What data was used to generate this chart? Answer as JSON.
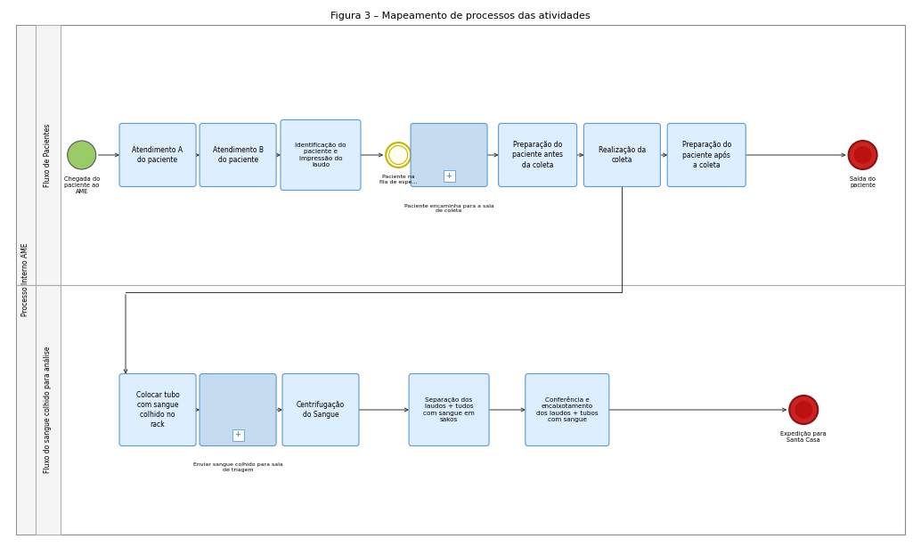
{
  "title": "Figura 3 – Mapeamento de processos das atividades",
  "title_fontsize": 8,
  "outer_border_color": "#888888",
  "lane_divider_color": "#aaaaaa",
  "box_fill_light": "#ddeeff",
  "box_border_color": "#5b9bd5",
  "box_text_color": "#000000",
  "arrow_color": "#333333",
  "start_event_green": "#99cc66",
  "end_event_red": "#cc2222",
  "intermediate_event_fill": "#fffff0",
  "intermediate_event_border": "#c8b400",
  "sub_process_fill": "#c5dcf0",
  "sub_process_border": "#5b9bd5",
  "process_label": "Processo Interno AME",
  "lane1_label": "Fluxo de Pacientes",
  "lane2_label": "Fluxo do sangue colhido para análise"
}
